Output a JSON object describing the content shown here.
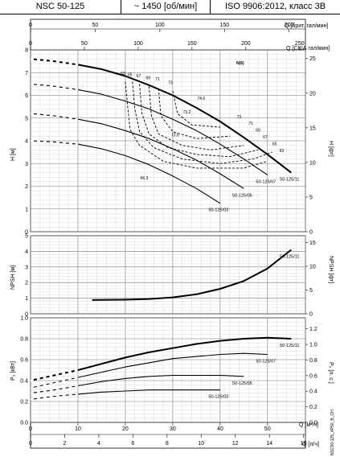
{
  "header": {
    "model": "NSC 50-125",
    "speed": "~ 1450 [об/мин]",
    "standard": "ISO 9906:2012, класс 3B"
  },
  "top_axes": {
    "imp_label": "Q [брит. гал/мин]",
    "imp_ticks": [
      "0",
      "50",
      "100",
      "150",
      "200"
    ],
    "us_label": "Q [США гал/мин]",
    "us_ticks": [
      "0",
      "50",
      "100",
      "150",
      "200",
      "250"
    ]
  },
  "bottom_axes": {
    "m3h_label": "Q [м³/ч]",
    "m3h_ticks": [
      "0",
      "10",
      "20",
      "30",
      "40",
      "50"
    ],
    "ls_label": "Q [л/ч]",
    "ls_ticks": [
      "0",
      "2",
      "4",
      "6",
      "8",
      "10",
      "12",
      "14",
      "16"
    ]
  },
  "side_text": "NSC50-125_4P50_B_CH",
  "chart_data": [
    {
      "type": "line",
      "panel": "head",
      "xlabel": "Q [м³/ч]",
      "ylabel": "H [м]",
      "ylabel_right": "H [фт]",
      "xlim": [
        0,
        58
      ],
      "ylim": [
        0,
        8
      ],
      "y_ticks": [
        0,
        1,
        2,
        3,
        4,
        5,
        6,
        7,
        8
      ],
      "y_right_ticks": [
        0,
        5,
        10,
        15,
        20,
        25
      ],
      "grid": true,
      "badge": "N(6)",
      "series": [
        {
          "name": "50-125/11",
          "x": [
            0,
            5,
            10,
            15,
            20,
            25,
            30,
            35,
            40,
            45,
            50,
            55
          ],
          "y": [
            7.6,
            7.5,
            7.35,
            7.15,
            6.85,
            6.45,
            6.0,
            5.45,
            4.85,
            4.15,
            3.4,
            2.6
          ]
        },
        {
          "name": "50-125/07",
          "x": [
            0,
            5,
            10,
            15,
            20,
            25,
            30,
            35,
            40,
            45,
            50
          ],
          "y": [
            6.5,
            6.4,
            6.25,
            6.05,
            5.75,
            5.4,
            4.95,
            4.45,
            3.85,
            3.2,
            2.5
          ]
        },
        {
          "name": "50-125/05",
          "x": [
            0,
            5,
            10,
            15,
            20,
            25,
            30,
            35,
            40,
            45
          ],
          "y": [
            5.2,
            5.1,
            4.95,
            4.75,
            4.45,
            4.1,
            3.65,
            3.15,
            2.55,
            1.9
          ]
        },
        {
          "name": "50-125/03",
          "x": [
            0,
            5,
            10,
            15,
            20,
            25,
            30,
            35,
            40
          ],
          "y": [
            4.0,
            3.95,
            3.85,
            3.65,
            3.35,
            2.95,
            2.45,
            1.9,
            1.25
          ]
        }
      ],
      "efficiency_labels": [
        "63",
        "65",
        "67",
        "69",
        "71",
        "73",
        "74.6",
        "73.2",
        "70.6",
        "66.3",
        "73",
        "71",
        "69",
        "67",
        "65",
        "63"
      ]
    },
    {
      "type": "line",
      "panel": "npsh",
      "xlabel": "Q [м³/ч]",
      "ylabel": "NPSH [м]",
      "ylabel_right": "NPSH [фт]",
      "xlim": [
        0,
        58
      ],
      "ylim": [
        0,
        5
      ],
      "y_ticks": [
        0,
        1,
        2,
        3,
        4,
        5
      ],
      "y_right_ticks": [
        0,
        5,
        10,
        15
      ],
      "grid": true,
      "series": [
        {
          "name": "50-125/11",
          "x": [
            13,
            20,
            25,
            30,
            35,
            40,
            45,
            50,
            55
          ],
          "y": [
            0.88,
            0.9,
            0.95,
            1.05,
            1.25,
            1.6,
            2.1,
            2.9,
            4.1
          ]
        }
      ]
    },
    {
      "type": "line",
      "panel": "power",
      "xlabel": "Q [м³/ч]",
      "ylabel": "P₂ [кВт]",
      "ylabel_right": "P₂ [л. с.]",
      "xlim": [
        0,
        58
      ],
      "ylim": [
        0,
        1
      ],
      "y_ticks": [
        0,
        0.2,
        0.4,
        0.6,
        0.8,
        1.0
      ],
      "y_right_ticks": [
        0,
        0.2,
        0.4,
        0.6,
        0.8,
        1.0,
        1.2
      ],
      "grid": true,
      "series": [
        {
          "name": "50-125/11",
          "x": [
            0,
            5,
            10,
            15,
            20,
            25,
            30,
            35,
            40,
            45,
            50,
            55
          ],
          "y": [
            0.4,
            0.45,
            0.5,
            0.56,
            0.62,
            0.67,
            0.71,
            0.75,
            0.78,
            0.8,
            0.81,
            0.8
          ]
        },
        {
          "name": "50-125/07",
          "x": [
            0,
            5,
            10,
            15,
            20,
            25,
            30,
            35,
            40,
            45,
            50
          ],
          "y": [
            0.33,
            0.38,
            0.43,
            0.48,
            0.53,
            0.57,
            0.61,
            0.63,
            0.65,
            0.66,
            0.65
          ]
        },
        {
          "name": "50-125/05",
          "x": [
            0,
            5,
            10,
            15,
            20,
            25,
            30,
            35,
            40,
            45
          ],
          "y": [
            0.28,
            0.31,
            0.35,
            0.39,
            0.42,
            0.44,
            0.45,
            0.45,
            0.45,
            0.44
          ]
        },
        {
          "name": "50-125/03",
          "x": [
            0,
            5,
            10,
            15,
            20,
            25,
            30,
            35,
            40
          ],
          "y": [
            0.22,
            0.25,
            0.27,
            0.29,
            0.3,
            0.31,
            0.31,
            0.31,
            0.31
          ]
        }
      ]
    }
  ]
}
